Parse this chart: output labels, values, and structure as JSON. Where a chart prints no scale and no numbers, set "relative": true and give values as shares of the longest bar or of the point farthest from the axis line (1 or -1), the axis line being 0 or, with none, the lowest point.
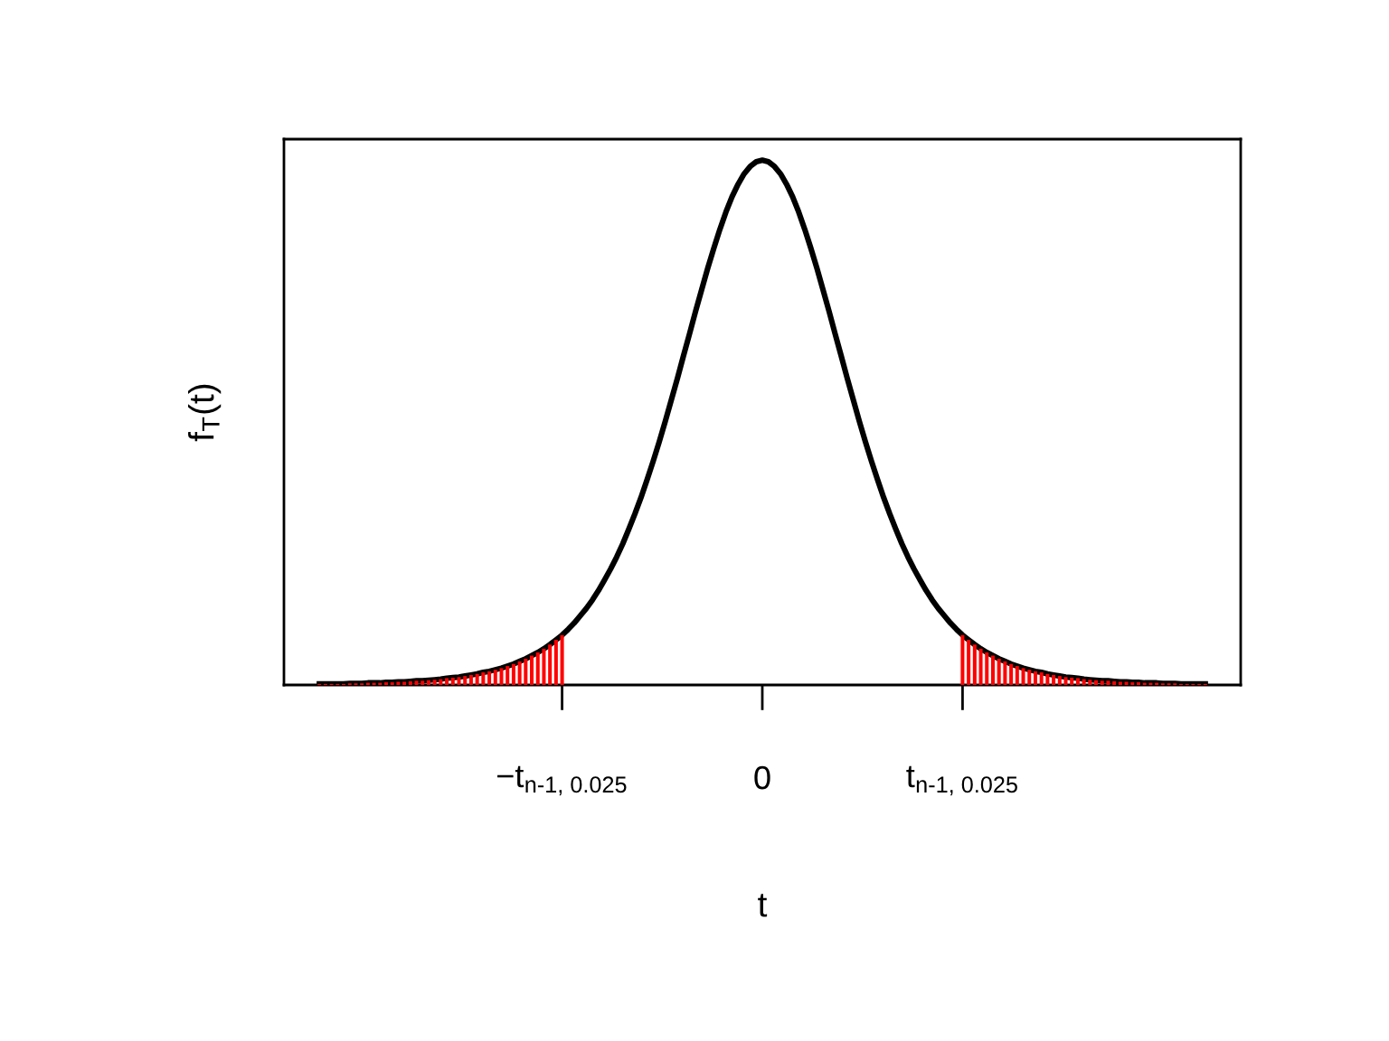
{
  "chart_data": {
    "type": "line",
    "relative": true,
    "xlabel": "t",
    "ylabel": "f$_{T}$(t)",
    "tick_labels": "x",
    "grid": false,
    "categories": [
      null,
      null,
      null,
      null,
      null,
      null,
      null,
      null,
      null,
      null,
      null,
      null,
      null,
      null,
      null,
      null,
      null,
      null,
      null,
      null,
      null,
      null,
      null,
      null,
      null,
      null,
      null,
      null,
      null,
      null,
      null,
      null,
      null,
      null,
      null,
      null,
      null,
      null,
      null,
      null,
      "−t$_{n-1, 0.025}$",
      null,
      null,
      null,
      null,
      null,
      null,
      null,
      null,
      null,
      null,
      null,
      null,
      null,
      null,
      null,
      null,
      null,
      null,
      null,
      null,
      null,
      null,
      null,
      null,
      null,
      null,
      null,
      null,
      null,
      null,
      null,
      null,
      "0",
      null,
      null,
      null,
      null,
      null,
      null,
      null,
      null,
      null,
      null,
      null,
      null,
      null,
      null,
      null,
      null,
      null,
      null,
      null,
      null,
      null,
      null,
      null,
      null,
      null,
      null,
      null,
      null,
      null,
      null,
      null,
      null,
      "t$_{n-1, 0.025}$",
      null,
      null,
      null,
      null,
      null,
      null,
      null,
      null,
      null,
      null,
      null,
      null,
      null,
      null,
      null,
      null,
      null,
      null,
      null,
      null,
      null,
      null,
      null,
      null,
      null,
      null,
      null,
      null,
      null,
      null,
      null,
      null,
      null,
      null,
      null,
      null,
      null,
      null,
      null,
      null
    ],
    "series": [
      {
        "type": "bar",
        "color": "#ff0000",
        "values": [
          0.002,
          0.002,
          0.002,
          0.002,
          0.002,
          0.003,
          0.003,
          0.003,
          0.004,
          0.004,
          0.004,
          0.005,
          0.005,
          0.006,
          0.006,
          0.007,
          0.008,
          0.008,
          0.009,
          0.01,
          0.011,
          0.013,
          0.014,
          0.015,
          0.017,
          0.019,
          0.021,
          0.024,
          0.026,
          0.029,
          0.032,
          0.036,
          0.04,
          0.045,
          0.05,
          0.056,
          0.062,
          0.069,
          0.077,
          0.086,
          0.095,
          null,
          null,
          null,
          null,
          null,
          null,
          null,
          null,
          null,
          null,
          null,
          null,
          null,
          null,
          null,
          null,
          null,
          null,
          null,
          null,
          null,
          null,
          null,
          null,
          null,
          null,
          null,
          null,
          null,
          null,
          null,
          null,
          null,
          null,
          null,
          null,
          null,
          null,
          null,
          null,
          null,
          null,
          null,
          null,
          null,
          null,
          null,
          null,
          null,
          null,
          null,
          null,
          null,
          null,
          null,
          null,
          null,
          null,
          null,
          null,
          null,
          null,
          null,
          null,
          null,
          0.095,
          0.086,
          0.077,
          0.069,
          0.062,
          0.056,
          0.05,
          0.045,
          0.04,
          0.036,
          0.032,
          0.029,
          0.026,
          0.024,
          0.021,
          0.019,
          0.017,
          0.015,
          0.014,
          0.013,
          0.011,
          0.01,
          0.009,
          0.008,
          0.008,
          0.007,
          0.006,
          0.006,
          0.005,
          0.005,
          0.004,
          0.004,
          0.004,
          0.003,
          0.003,
          0.003,
          0.002,
          0.002,
          0.002,
          0.002,
          0.002
        ]
      },
      {
        "type": "line",
        "color": "#000000",
        "line_style": "solid",
        "values": [
          0.002,
          0.002,
          0.002,
          0.002,
          0.002,
          0.003,
          0.003,
          0.003,
          0.004,
          0.004,
          0.004,
          0.005,
          0.005,
          0.006,
          0.006,
          0.007,
          0.008,
          0.008,
          0.009,
          0.01,
          0.011,
          0.013,
          0.014,
          0.015,
          0.017,
          0.019,
          0.021,
          0.024,
          0.026,
          0.029,
          0.032,
          0.036,
          0.04,
          0.045,
          0.05,
          0.056,
          0.062,
          0.069,
          0.077,
          0.086,
          0.095,
          0.106,
          0.118,
          0.132,
          0.146,
          0.162,
          0.18,
          0.2,
          0.221,
          0.244,
          0.269,
          0.297,
          0.326,
          0.357,
          0.391,
          0.426,
          0.463,
          0.502,
          0.543,
          0.584,
          0.627,
          0.669,
          0.712,
          0.753,
          0.794,
          0.832,
          0.868,
          0.901,
          0.93,
          0.954,
          0.974,
          0.988,
          0.997,
          1.0,
          0.997,
          0.988,
          0.974,
          0.954,
          0.93,
          0.901,
          0.868,
          0.832,
          0.794,
          0.753,
          0.712,
          0.669,
          0.627,
          0.584,
          0.543,
          0.502,
          0.463,
          0.426,
          0.391,
          0.357,
          0.326,
          0.297,
          0.269,
          0.244,
          0.221,
          0.2,
          0.18,
          0.162,
          0.146,
          0.132,
          0.118,
          0.106,
          0.095,
          0.086,
          0.077,
          0.069,
          0.062,
          0.056,
          0.05,
          0.045,
          0.04,
          0.036,
          0.032,
          0.029,
          0.026,
          0.024,
          0.021,
          0.019,
          0.017,
          0.015,
          0.014,
          0.013,
          0.011,
          0.01,
          0.009,
          0.008,
          0.008,
          0.007,
          0.006,
          0.006,
          0.005,
          0.005,
          0.004,
          0.004,
          0.004,
          0.003,
          0.003,
          0.003,
          0.002,
          0.002,
          0.002,
          0.002,
          0.002
        ]
      }
    ]
  }
}
